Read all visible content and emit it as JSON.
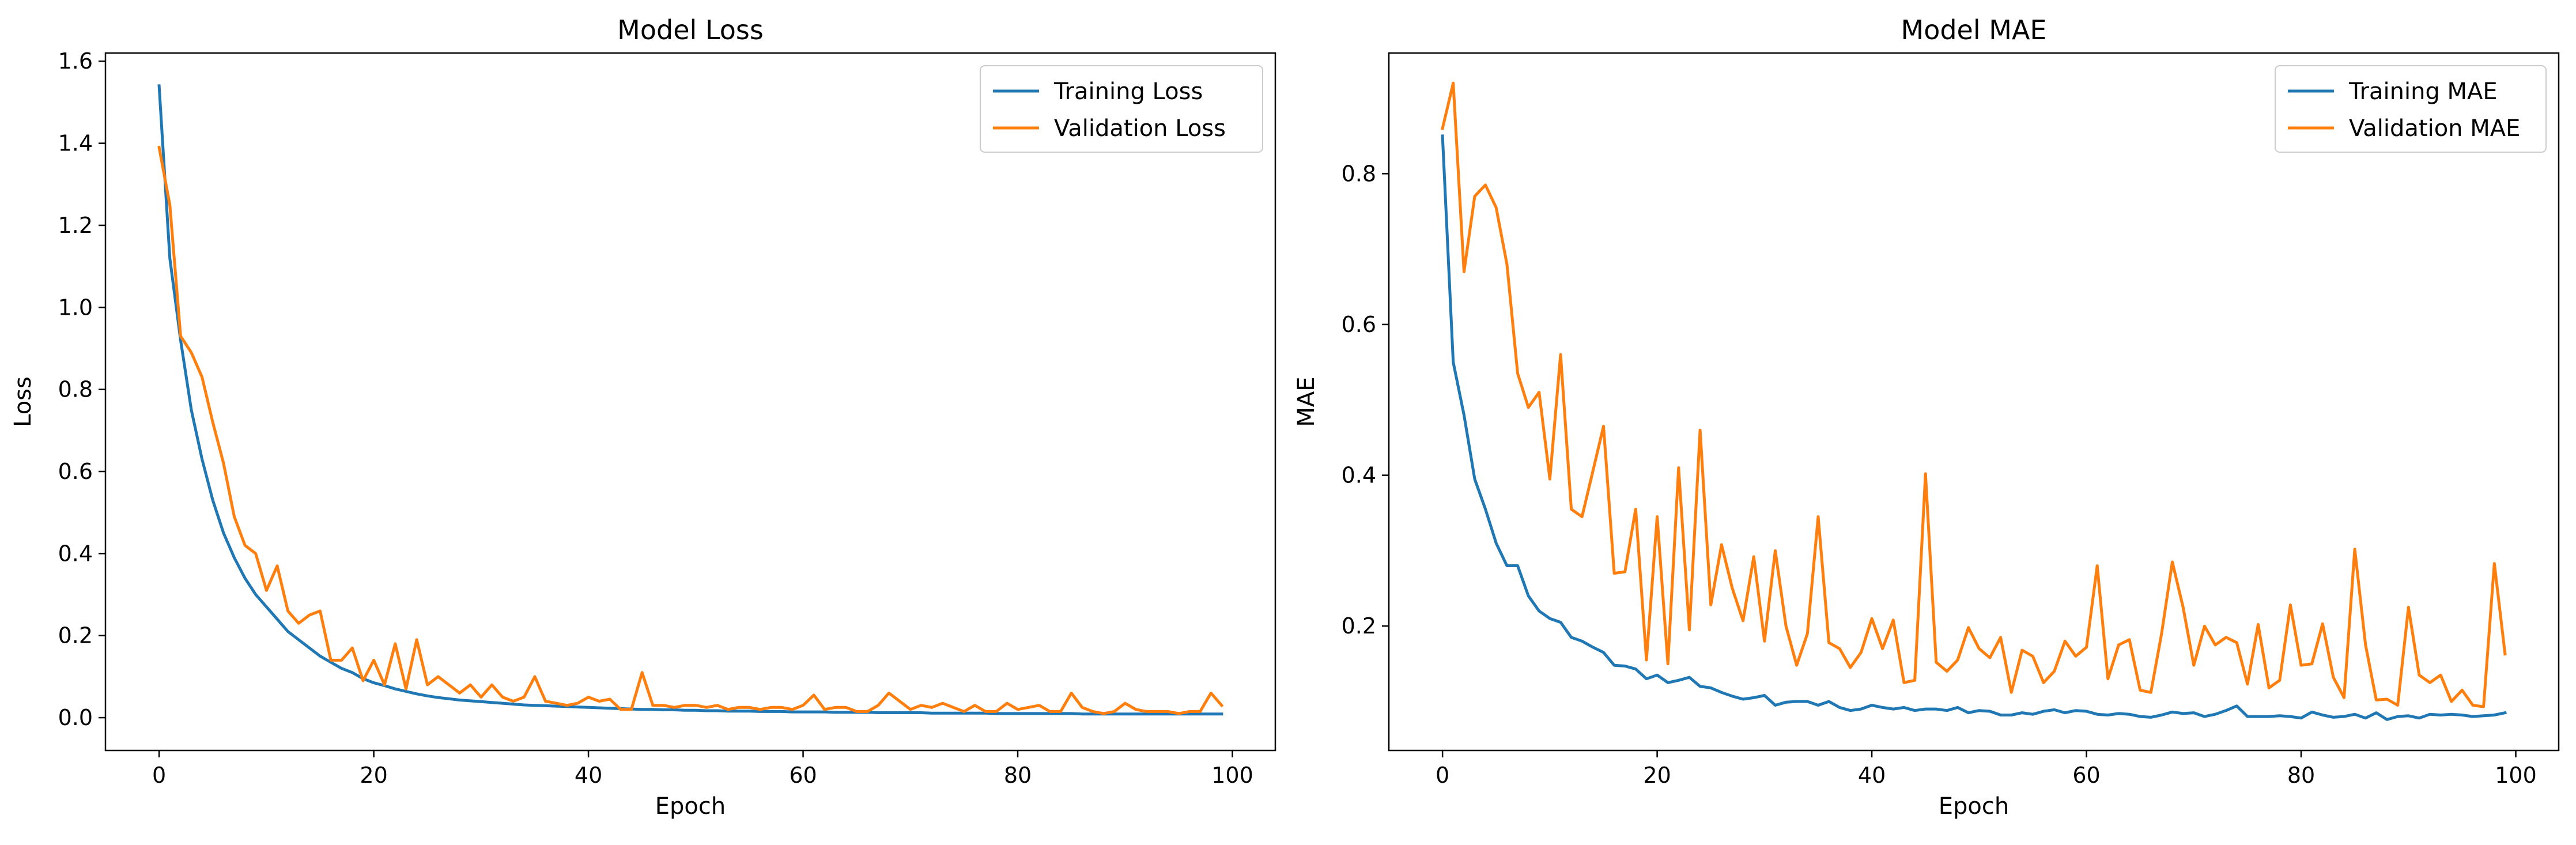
{
  "chart_data": [
    {
      "type": "line",
      "title": "Model Loss",
      "xlabel": "Epoch",
      "ylabel": "Loss",
      "xlim": [
        -5,
        104
      ],
      "ylim": [
        -0.08,
        1.62
      ],
      "xticks": [
        0,
        20,
        40,
        60,
        80,
        100
      ],
      "yticks": [
        0.0,
        0.2,
        0.4,
        0.6,
        0.8,
        1.0,
        1.2,
        1.4,
        1.6
      ],
      "ytick_decimals": 1,
      "grid": false,
      "legend": "top-right",
      "series": [
        {
          "name": "Training Loss",
          "color": "#1f77b4",
          "values": [
            1.54,
            1.12,
            0.92,
            0.75,
            0.63,
            0.53,
            0.45,
            0.39,
            0.34,
            0.3,
            0.27,
            0.24,
            0.21,
            0.19,
            0.17,
            0.15,
            0.135,
            0.12,
            0.11,
            0.095,
            0.085,
            0.078,
            0.07,
            0.064,
            0.058,
            0.053,
            0.049,
            0.046,
            0.043,
            0.041,
            0.039,
            0.037,
            0.035,
            0.033,
            0.031,
            0.03,
            0.029,
            0.028,
            0.027,
            0.026,
            0.025,
            0.024,
            0.023,
            0.022,
            0.021,
            0.02,
            0.02,
            0.019,
            0.019,
            0.018,
            0.018,
            0.017,
            0.017,
            0.016,
            0.016,
            0.016,
            0.015,
            0.015,
            0.015,
            0.014,
            0.014,
            0.014,
            0.014,
            0.013,
            0.013,
            0.013,
            0.013,
            0.012,
            0.012,
            0.012,
            0.012,
            0.012,
            0.011,
            0.011,
            0.011,
            0.011,
            0.011,
            0.011,
            0.01,
            0.01,
            0.01,
            0.01,
            0.01,
            0.01,
            0.01,
            0.01,
            0.009,
            0.009,
            0.009,
            0.009,
            0.009,
            0.009,
            0.009,
            0.009,
            0.009,
            0.009,
            0.009,
            0.009,
            0.009,
            0.009
          ]
        },
        {
          "name": "Validation Loss",
          "color": "#ff7f0e",
          "values": [
            1.39,
            1.25,
            0.93,
            0.89,
            0.83,
            0.72,
            0.62,
            0.49,
            0.42,
            0.4,
            0.31,
            0.37,
            0.26,
            0.23,
            0.25,
            0.26,
            0.14,
            0.14,
            0.17,
            0.09,
            0.14,
            0.08,
            0.18,
            0.07,
            0.19,
            0.08,
            0.1,
            0.08,
            0.06,
            0.08,
            0.05,
            0.08,
            0.05,
            0.04,
            0.05,
            0.1,
            0.04,
            0.035,
            0.03,
            0.035,
            0.05,
            0.04,
            0.045,
            0.02,
            0.02,
            0.11,
            0.03,
            0.03,
            0.025,
            0.03,
            0.03,
            0.025,
            0.03,
            0.02,
            0.025,
            0.025,
            0.02,
            0.025,
            0.025,
            0.02,
            0.03,
            0.055,
            0.02,
            0.025,
            0.025,
            0.015,
            0.015,
            0.03,
            0.06,
            0.04,
            0.02,
            0.03,
            0.025,
            0.035,
            0.025,
            0.015,
            0.03,
            0.015,
            0.015,
            0.035,
            0.02,
            0.025,
            0.03,
            0.015,
            0.015,
            0.06,
            0.025,
            0.015,
            0.01,
            0.015,
            0.035,
            0.02,
            0.015,
            0.015,
            0.015,
            0.01,
            0.015,
            0.015,
            0.06,
            0.03
          ]
        }
      ]
    },
    {
      "type": "line",
      "title": "Model MAE",
      "xlabel": "Epoch",
      "ylabel": "MAE",
      "xlim": [
        -5,
        104
      ],
      "ylim": [
        0.035,
        0.96
      ],
      "xticks": [
        0,
        20,
        40,
        60,
        80,
        100
      ],
      "yticks": [
        0.2,
        0.4,
        0.6,
        0.8
      ],
      "ytick_decimals": 1,
      "grid": false,
      "legend": "top-right",
      "series": [
        {
          "name": "Training MAE",
          "color": "#1f77b4",
          "values": [
            0.85,
            0.55,
            0.48,
            0.395,
            0.355,
            0.31,
            0.28,
            0.28,
            0.24,
            0.22,
            0.21,
            0.205,
            0.185,
            0.18,
            0.172,
            0.165,
            0.148,
            0.147,
            0.143,
            0.13,
            0.135,
            0.125,
            0.128,
            0.132,
            0.12,
            0.118,
            0.112,
            0.107,
            0.103,
            0.105,
            0.108,
            0.095,
            0.099,
            0.1,
            0.1,
            0.095,
            0.1,
            0.092,
            0.088,
            0.09,
            0.095,
            0.092,
            0.09,
            0.092,
            0.088,
            0.09,
            0.09,
            0.088,
            0.092,
            0.085,
            0.088,
            0.087,
            0.082,
            0.082,
            0.085,
            0.083,
            0.087,
            0.089,
            0.085,
            0.088,
            0.087,
            0.083,
            0.082,
            0.084,
            0.083,
            0.08,
            0.079,
            0.082,
            0.086,
            0.084,
            0.085,
            0.08,
            0.083,
            0.088,
            0.094,
            0.08,
            0.08,
            0.08,
            0.081,
            0.08,
            0.078,
            0.086,
            0.082,
            0.079,
            0.08,
            0.083,
            0.078,
            0.085,
            0.076,
            0.08,
            0.081,
            0.078,
            0.083,
            0.082,
            0.083,
            0.082,
            0.08,
            0.081,
            0.082,
            0.085
          ]
        },
        {
          "name": "Validation MAE",
          "color": "#ff7f0e",
          "values": [
            0.86,
            0.92,
            0.67,
            0.77,
            0.785,
            0.755,
            0.68,
            0.535,
            0.49,
            0.51,
            0.395,
            0.56,
            0.355,
            0.345,
            0.405,
            0.465,
            0.27,
            0.272,
            0.355,
            0.155,
            0.345,
            0.15,
            0.41,
            0.195,
            0.46,
            0.228,
            0.308,
            0.25,
            0.207,
            0.292,
            0.18,
            0.3,
            0.2,
            0.148,
            0.19,
            0.345,
            0.178,
            0.17,
            0.145,
            0.165,
            0.21,
            0.17,
            0.208,
            0.125,
            0.128,
            0.402,
            0.152,
            0.14,
            0.155,
            0.198,
            0.17,
            0.158,
            0.185,
            0.112,
            0.168,
            0.16,
            0.125,
            0.14,
            0.18,
            0.16,
            0.172,
            0.28,
            0.13,
            0.175,
            0.182,
            0.115,
            0.112,
            0.19,
            0.285,
            0.225,
            0.148,
            0.2,
            0.175,
            0.185,
            0.178,
            0.123,
            0.202,
            0.118,
            0.128,
            0.228,
            0.148,
            0.15,
            0.203,
            0.132,
            0.105,
            0.302,
            0.175,
            0.102,
            0.103,
            0.095,
            0.225,
            0.135,
            0.125,
            0.135,
            0.1,
            0.115,
            0.095,
            0.093,
            0.283,
            0.163
          ]
        }
      ]
    }
  ]
}
